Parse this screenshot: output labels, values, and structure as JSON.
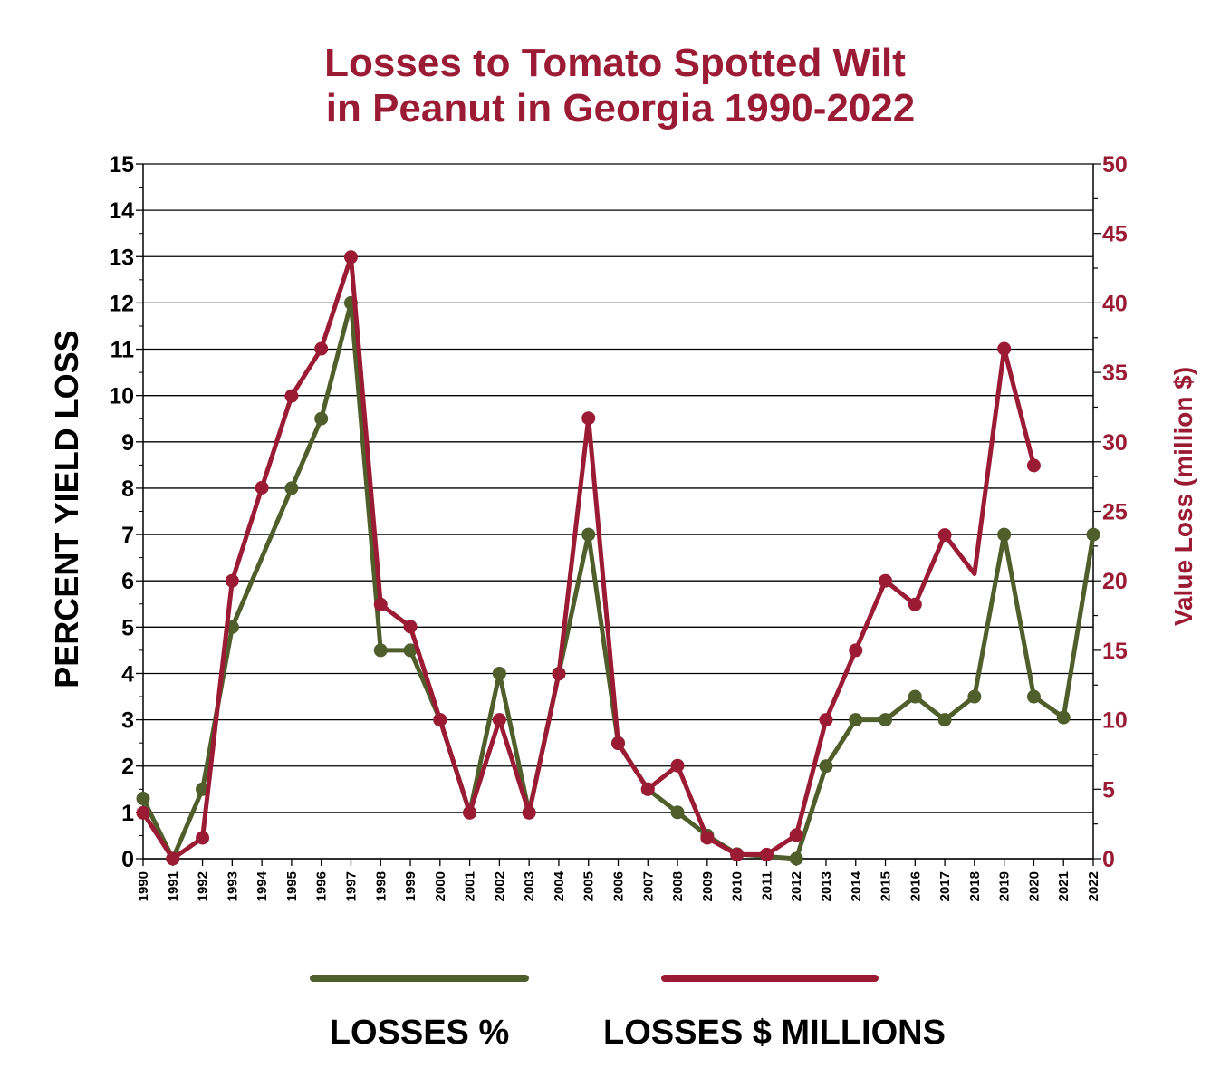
{
  "chart_data": {
    "type": "line",
    "title_line1": "Losses to Tomato Spotted Wilt",
    "title_line2": "in Peanut in Georgia 1990-2022",
    "y_left_label": "PERCENT YIELD LOSS",
    "y_right_label": "Value Loss (million $)",
    "y_left_lim": [
      0,
      15
    ],
    "y_right_lim": [
      0,
      50
    ],
    "y_left_ticks": [
      "0",
      "1",
      "2",
      "3",
      "4",
      "5",
      "6",
      "7",
      "8",
      "9",
      "10",
      "11",
      "12",
      "13",
      "14",
      "15"
    ],
    "y_right_ticks": [
      "0",
      "5",
      "10",
      "15",
      "20",
      "25",
      "30",
      "35",
      "40",
      "45",
      "50"
    ],
    "x_ticks": [
      "1990",
      "1991",
      "1992",
      "1993",
      "1994",
      "1995",
      "1996",
      "1997",
      "1998",
      "1999",
      "2000",
      "2001",
      "2002",
      "2003",
      "2004",
      "2005",
      "2006",
      "2007",
      "2008",
      "2009",
      "2010",
      "2011",
      "2012",
      "2013",
      "2014",
      "2015",
      "2016",
      "2017",
      "2018",
      "2019",
      "2020",
      "2021",
      "2022"
    ],
    "grid": "horizontal",
    "legend_position": "bottom",
    "series": [
      {
        "name": "LOSSES %",
        "color": "#4f5e2a",
        "axis": "left",
        "points": [
          {
            "x": 1990,
            "y": 1.3,
            "marker": true
          },
          {
            "x": 1991,
            "y": 0,
            "marker": true
          },
          {
            "x": 1992,
            "y": 1.5,
            "marker": true
          },
          {
            "x": 1993,
            "y": 5,
            "marker": true
          },
          {
            "x": 1995,
            "y": 8,
            "marker": true
          },
          {
            "x": 1996,
            "y": 9.5,
            "marker": true
          },
          {
            "x": 1997,
            "y": 12,
            "marker": true
          },
          {
            "x": 1998,
            "y": 4.5,
            "marker": true
          },
          {
            "x": 1999,
            "y": 4.5,
            "marker": true
          },
          {
            "x": 2000,
            "y": 3,
            "marker": true
          },
          {
            "x": 2001,
            "y": 1,
            "marker": true
          },
          {
            "x": 2002,
            "y": 4,
            "marker": true
          },
          {
            "x": 2003,
            "y": 1,
            "marker": true
          },
          {
            "x": 2004,
            "y": 4,
            "marker": true
          },
          {
            "x": 2005,
            "y": 7,
            "marker": true
          },
          {
            "x": 2006,
            "y": 2.5,
            "marker": true
          },
          {
            "x": 2007,
            "y": 1.5,
            "marker": true
          },
          {
            "x": 2008,
            "y": 1,
            "marker": true
          },
          {
            "x": 2009,
            "y": 0.5,
            "marker": true
          },
          {
            "x": 2010,
            "y": 0.1,
            "marker": true
          },
          {
            "x": 2011,
            "y": 0.05,
            "marker": false
          },
          {
            "x": 2012,
            "y": 0,
            "marker": true
          },
          {
            "x": 2013,
            "y": 2,
            "marker": true
          },
          {
            "x": 2014,
            "y": 3,
            "marker": true
          },
          {
            "x": 2015,
            "y": 3,
            "marker": true
          },
          {
            "x": 2016,
            "y": 3.5,
            "marker": true
          },
          {
            "x": 2017,
            "y": 3,
            "marker": true
          },
          {
            "x": 2018,
            "y": 3.5,
            "marker": true
          },
          {
            "x": 2019,
            "y": 7,
            "marker": true
          },
          {
            "x": 2020,
            "y": 3.5,
            "marker": true
          },
          {
            "x": 2021,
            "y": 3.05,
            "marker": true
          },
          {
            "x": 2022,
            "y": 7,
            "marker": true
          }
        ]
      },
      {
        "name": "LOSSES $ MILLIONS",
        "color": "#9b1b34",
        "axis": "right",
        "points": [
          {
            "x": 1990,
            "y": 3.3,
            "marker": true
          },
          {
            "x": 1991,
            "y": 0,
            "marker": true
          },
          {
            "x": 1992,
            "y": 1.5,
            "marker": true
          },
          {
            "x": 1993,
            "y": 20,
            "marker": true
          },
          {
            "x": 1994,
            "y": 26.7,
            "marker": true
          },
          {
            "x": 1995,
            "y": 33.3,
            "marker": true
          },
          {
            "x": 1996,
            "y": 36.7,
            "marker": true
          },
          {
            "x": 1997,
            "y": 43.3,
            "marker": true
          },
          {
            "x": 1998,
            "y": 18.3,
            "marker": true
          },
          {
            "x": 1999,
            "y": 16.7,
            "marker": true
          },
          {
            "x": 2000,
            "y": 10,
            "marker": true
          },
          {
            "x": 2001,
            "y": 3.3,
            "marker": true
          },
          {
            "x": 2002,
            "y": 10,
            "marker": true
          },
          {
            "x": 2003,
            "y": 3.3,
            "marker": true
          },
          {
            "x": 2004,
            "y": 13.3,
            "marker": true
          },
          {
            "x": 2005,
            "y": 31.7,
            "marker": true
          },
          {
            "x": 2006,
            "y": 8.3,
            "marker": true
          },
          {
            "x": 2007,
            "y": 5,
            "marker": true
          },
          {
            "x": 2008,
            "y": 6.7,
            "marker": true
          },
          {
            "x": 2009,
            "y": 1.5,
            "marker": true
          },
          {
            "x": 2010,
            "y": 0.3,
            "marker": true
          },
          {
            "x": 2011,
            "y": 0.3,
            "marker": true
          },
          {
            "x": 2012,
            "y": 1.7,
            "marker": true
          },
          {
            "x": 2013,
            "y": 10,
            "marker": true
          },
          {
            "x": 2014,
            "y": 15,
            "marker": true
          },
          {
            "x": 2015,
            "y": 20,
            "marker": true
          },
          {
            "x": 2016,
            "y": 18.3,
            "marker": true
          },
          {
            "x": 2017,
            "y": 23.3,
            "marker": true
          },
          {
            "x": 2018,
            "y": 20.5,
            "marker": false
          },
          {
            "x": 2019,
            "y": 36.7,
            "marker": true
          },
          {
            "x": 2020,
            "y": 28.3,
            "marker": true
          }
        ]
      }
    ]
  }
}
